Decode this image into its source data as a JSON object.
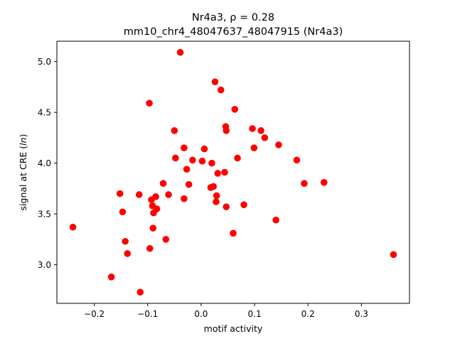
{
  "chart_data": {
    "type": "scatter",
    "title_line1": "Nr4a3, ρ = 0.28",
    "title_line2": "mm10_chr4_48047637_48047915 (Nr4a3)",
    "xlabel": "motif activity",
    "ylabel_prefix": "signal at CRE (",
    "ylabel_italic": "ln",
    "ylabel_suffix": ")",
    "xlim": [
      -0.27,
      0.39
    ],
    "ylim": [
      2.62,
      5.2
    ],
    "xticks": [
      {
        "value": -0.2,
        "label": "−0.2"
      },
      {
        "value": -0.1,
        "label": "−0.1"
      },
      {
        "value": 0.0,
        "label": "0.0"
      },
      {
        "value": 0.1,
        "label": "0.1"
      },
      {
        "value": 0.2,
        "label": "0.2"
      },
      {
        "value": 0.3,
        "label": "0.3"
      }
    ],
    "yticks": [
      {
        "value": 3.0,
        "label": "3.0"
      },
      {
        "value": 3.5,
        "label": "3.5"
      },
      {
        "value": 4.0,
        "label": "4.0"
      },
      {
        "value": 4.5,
        "label": "4.5"
      },
      {
        "value": 5.0,
        "label": "5.0"
      }
    ],
    "grid": false,
    "marker_color": "#ff0000",
    "points": [
      {
        "x": -0.24,
        "y": 3.37
      },
      {
        "x": -0.168,
        "y": 2.88
      },
      {
        "x": -0.152,
        "y": 3.7
      },
      {
        "x": -0.147,
        "y": 3.52
      },
      {
        "x": -0.142,
        "y": 3.23
      },
      {
        "x": -0.138,
        "y": 3.11
      },
      {
        "x": -0.116,
        "y": 3.69
      },
      {
        "x": -0.114,
        "y": 2.73
      },
      {
        "x": -0.097,
        "y": 4.59
      },
      {
        "x": -0.096,
        "y": 3.16
      },
      {
        "x": -0.093,
        "y": 3.64
      },
      {
        "x": -0.091,
        "y": 3.58
      },
      {
        "x": -0.09,
        "y": 3.36
      },
      {
        "x": -0.089,
        "y": 3.51
      },
      {
        "x": -0.085,
        "y": 3.67
      },
      {
        "x": -0.083,
        "y": 3.55
      },
      {
        "x": -0.071,
        "y": 3.8
      },
      {
        "x": -0.066,
        "y": 3.25
      },
      {
        "x": -0.061,
        "y": 3.69
      },
      {
        "x": -0.05,
        "y": 4.32
      },
      {
        "x": -0.048,
        "y": 4.05
      },
      {
        "x": -0.039,
        "y": 5.09
      },
      {
        "x": -0.032,
        "y": 4.15
      },
      {
        "x": -0.032,
        "y": 3.65
      },
      {
        "x": -0.027,
        "y": 3.94
      },
      {
        "x": -0.023,
        "y": 3.79
      },
      {
        "x": -0.016,
        "y": 4.03
      },
      {
        "x": 0.002,
        "y": 4.02
      },
      {
        "x": 0.006,
        "y": 4.14
      },
      {
        "x": 0.018,
        "y": 3.76
      },
      {
        "x": 0.02,
        "y": 4.0
      },
      {
        "x": 0.023,
        "y": 3.77
      },
      {
        "x": 0.026,
        "y": 4.8
      },
      {
        "x": 0.028,
        "y": 3.62
      },
      {
        "x": 0.029,
        "y": 3.68
      },
      {
        "x": 0.031,
        "y": 3.9
      },
      {
        "x": 0.037,
        "y": 4.72
      },
      {
        "x": 0.044,
        "y": 3.91
      },
      {
        "x": 0.046,
        "y": 4.36
      },
      {
        "x": 0.047,
        "y": 4.32
      },
      {
        "x": 0.047,
        "y": 3.57
      },
      {
        "x": 0.06,
        "y": 3.31
      },
      {
        "x": 0.063,
        "y": 4.53
      },
      {
        "x": 0.068,
        "y": 4.05
      },
      {
        "x": 0.08,
        "y": 3.59
      },
      {
        "x": 0.096,
        "y": 4.34
      },
      {
        "x": 0.099,
        "y": 4.15
      },
      {
        "x": 0.112,
        "y": 4.32
      },
      {
        "x": 0.119,
        "y": 4.25
      },
      {
        "x": 0.14,
        "y": 3.44
      },
      {
        "x": 0.145,
        "y": 4.18
      },
      {
        "x": 0.179,
        "y": 4.03
      },
      {
        "x": 0.193,
        "y": 3.8
      },
      {
        "x": 0.23,
        "y": 3.81
      },
      {
        "x": 0.36,
        "y": 3.1
      }
    ]
  }
}
